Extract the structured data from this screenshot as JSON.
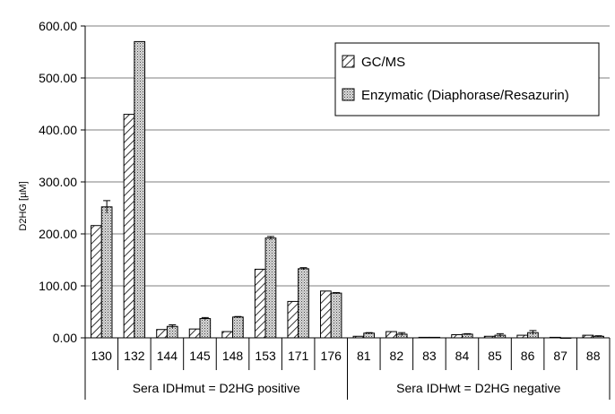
{
  "chart_data": {
    "type": "bar",
    "ylabel": "D2HG [µM]",
    "ylim": [
      0,
      600
    ],
    "yticks": [
      "0.00",
      "100.00",
      "200.00",
      "300.00",
      "400.00",
      "500.00",
      "600.00"
    ],
    "ytick_values": [
      0,
      100,
      200,
      300,
      400,
      500,
      600
    ],
    "grid": true,
    "legend_position": "top-right",
    "categories": [
      "130",
      "132",
      "144",
      "145",
      "148",
      "153",
      "171",
      "176",
      "81",
      "82",
      "83",
      "84",
      "85",
      "86",
      "87",
      "88"
    ],
    "groups": [
      {
        "label": "Sera IDHmut = D2HG positive",
        "categories": [
          "130",
          "132",
          "144",
          "145",
          "148",
          "153",
          "171",
          "176"
        ]
      },
      {
        "label": "Sera IDHwt = D2HG negative",
        "categories": [
          "81",
          "82",
          "83",
          "84",
          "85",
          "86",
          "87",
          "88"
        ]
      }
    ],
    "series": [
      {
        "name": "GC/MS",
        "pattern": "diagonal-hatch",
        "values": [
          216,
          430,
          16,
          17,
          12,
          132,
          70,
          90,
          3,
          12,
          1,
          6,
          3,
          5,
          1,
          5
        ],
        "errors": [
          0,
          0,
          0,
          0,
          0,
          0,
          0,
          0,
          0,
          0,
          0,
          0,
          0,
          0,
          0,
          0
        ]
      },
      {
        "name": "Enzymatic (Diaphorase/Resazurin)",
        "pattern": "dotted",
        "values": [
          252,
          570,
          22,
          37,
          40,
          192,
          133,
          86,
          9,
          7,
          1,
          7,
          5,
          10,
          0,
          3
        ],
        "errors": [
          12,
          0,
          3,
          2,
          1,
          3,
          2,
          1,
          1,
          3,
          0,
          1,
          3,
          4,
          0,
          1
        ]
      }
    ]
  }
}
